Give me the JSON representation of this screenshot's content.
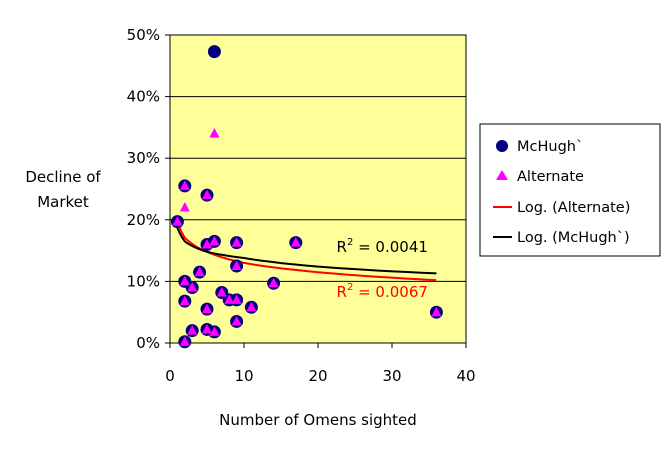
{
  "chart_data": {
    "type": "scatter",
    "xlabel": "Number of Omens sighted",
    "ylabel": [
      "Decline of",
      "Market"
    ],
    "xlim": [
      0,
      40
    ],
    "ylim": [
      0,
      0.5
    ],
    "x_ticks": [
      0,
      10,
      20,
      30,
      40
    ],
    "x_tick_labels": [
      "0",
      "10",
      "20",
      "30",
      "40"
    ],
    "y_ticks": [
      0,
      0.1,
      0.2,
      0.3,
      0.4,
      0.5
    ],
    "y_tick_labels": [
      "0%",
      "10%",
      "20%",
      "30%",
      "40%",
      "50%"
    ],
    "grid": "horizontal",
    "plot_background": "#ffff99",
    "legend_position": "right",
    "series": [
      {
        "name": "McHugh`",
        "kind": "points",
        "marker": "circle",
        "color": "#000080",
        "points": [
          [
            1,
            0.197
          ],
          [
            2,
            0.255
          ],
          [
            2,
            0.1
          ],
          [
            2,
            0.068
          ],
          [
            2,
            0.002
          ],
          [
            3,
            0.09
          ],
          [
            3,
            0.02
          ],
          [
            4,
            0.115
          ],
          [
            5,
            0.16
          ],
          [
            5,
            0.24
          ],
          [
            5,
            0.055
          ],
          [
            5,
            0.022
          ],
          [
            6,
            0.473
          ],
          [
            6,
            0.165
          ],
          [
            6,
            0.018
          ],
          [
            7,
            0.082
          ],
          [
            8,
            0.07
          ],
          [
            9,
            0.163
          ],
          [
            9,
            0.125
          ],
          [
            9,
            0.07
          ],
          [
            9,
            0.035
          ],
          [
            11,
            0.058
          ],
          [
            14,
            0.097
          ],
          [
            17,
            0.163
          ],
          [
            36,
            0.05
          ]
        ]
      },
      {
        "name": "Alternate",
        "kind": "points",
        "marker": "triangle",
        "color": "#ff00ff",
        "points": [
          [
            1,
            0.197
          ],
          [
            2,
            0.255
          ],
          [
            2,
            0.22
          ],
          [
            2,
            0.1
          ],
          [
            2,
            0.068
          ],
          [
            2,
            0.002
          ],
          [
            3,
            0.09
          ],
          [
            3,
            0.02
          ],
          [
            4,
            0.115
          ],
          [
            5,
            0.16
          ],
          [
            5,
            0.24
          ],
          [
            5,
            0.055
          ],
          [
            5,
            0.022
          ],
          [
            6,
            0.34
          ],
          [
            6,
            0.165
          ],
          [
            6,
            0.018
          ],
          [
            7,
            0.082
          ],
          [
            8,
            0.07
          ],
          [
            9,
            0.163
          ],
          [
            9,
            0.125
          ],
          [
            9,
            0.07
          ],
          [
            9,
            0.035
          ],
          [
            11,
            0.058
          ],
          [
            14,
            0.097
          ],
          [
            17,
            0.163
          ],
          [
            36,
            0.05
          ]
        ]
      },
      {
        "name": "Log. (Alternate)",
        "kind": "trendline",
        "color": "#ff0000",
        "points": [
          [
            1,
            0.197
          ],
          [
            2,
            0.171
          ],
          [
            5,
            0.148
          ],
          [
            10,
            0.13
          ],
          [
            20,
            0.115
          ],
          [
            36,
            0.102
          ]
        ]
      },
      {
        "name": "Log. (McHugh`)",
        "kind": "trendline",
        "color": "#000000",
        "points": [
          [
            1,
            0.187
          ],
          [
            2,
            0.165
          ],
          [
            5,
            0.148
          ],
          [
            10,
            0.138
          ],
          [
            20,
            0.124
          ],
          [
            36,
            0.113
          ]
        ]
      }
    ],
    "annotations": [
      {
        "text_main": "R",
        "text_sup": "2",
        "text_rest": " = 0.0041",
        "x": 22.5,
        "y": 0.148,
        "color": "#000000"
      },
      {
        "text_main": "R",
        "text_sup": "2",
        "text_rest": " = 0.0067",
        "x": 22.5,
        "y": 0.075,
        "color": "#ff0000"
      }
    ]
  }
}
